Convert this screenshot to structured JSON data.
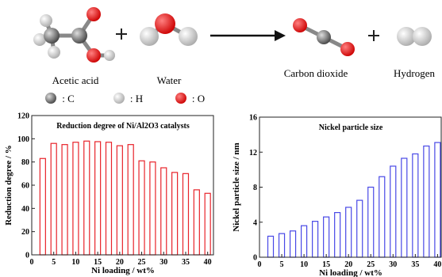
{
  "scheme": {
    "reactants": [
      "Acetic acid",
      "Water"
    ],
    "products": [
      "Carbon dioxide",
      "Hydrogen"
    ],
    "atoms": [
      ": C",
      ": H",
      ": O"
    ]
  },
  "chart_data": [
    {
      "type": "bar",
      "title": "Reduction degree of Ni/Al2O3 catalysts",
      "x_label": "Ni loading / wt%",
      "y_label": "Reduction degree / %",
      "x": [
        2.5,
        5,
        7.5,
        10,
        12.5,
        15,
        17.5,
        20,
        22.5,
        25,
        27.5,
        30,
        32.5,
        35,
        37.5,
        40
      ],
      "values": [
        83,
        96,
        95,
        97,
        98,
        97.5,
        97,
        94,
        95,
        81,
        80,
        75,
        71,
        70,
        56,
        53
      ],
      "color": "#e8232a",
      "xlim": [
        0,
        41.5
      ],
      "xticks": [
        0,
        5,
        10,
        15,
        20,
        25,
        30,
        35,
        40
      ],
      "ylim": [
        0,
        120
      ],
      "yticks": [
        0,
        20,
        40,
        60,
        80,
        100,
        120
      ]
    },
    {
      "type": "bar",
      "title": "Nickel particle size",
      "x_label": "Ni loading / wt%",
      "y_label": "Nickel particle size / nm",
      "x": [
        2.5,
        5,
        7.5,
        10,
        12.5,
        15,
        17.5,
        20,
        22.5,
        25,
        27.5,
        30,
        32.5,
        35,
        37.5,
        40
      ],
      "values": [
        2.4,
        2.7,
        3.0,
        3.6,
        4.1,
        4.6,
        5.1,
        5.7,
        6.5,
        8.0,
        9.2,
        10.4,
        11.3,
        11.8,
        12.7,
        13.1
      ],
      "color": "#4848e6",
      "xlim": [
        0,
        41
      ],
      "xticks": [
        0,
        5,
        10,
        15,
        20,
        25,
        30,
        35,
        40
      ],
      "ylim": [
        0,
        16
      ],
      "yticks": [
        0,
        4,
        8,
        12,
        16
      ]
    }
  ]
}
